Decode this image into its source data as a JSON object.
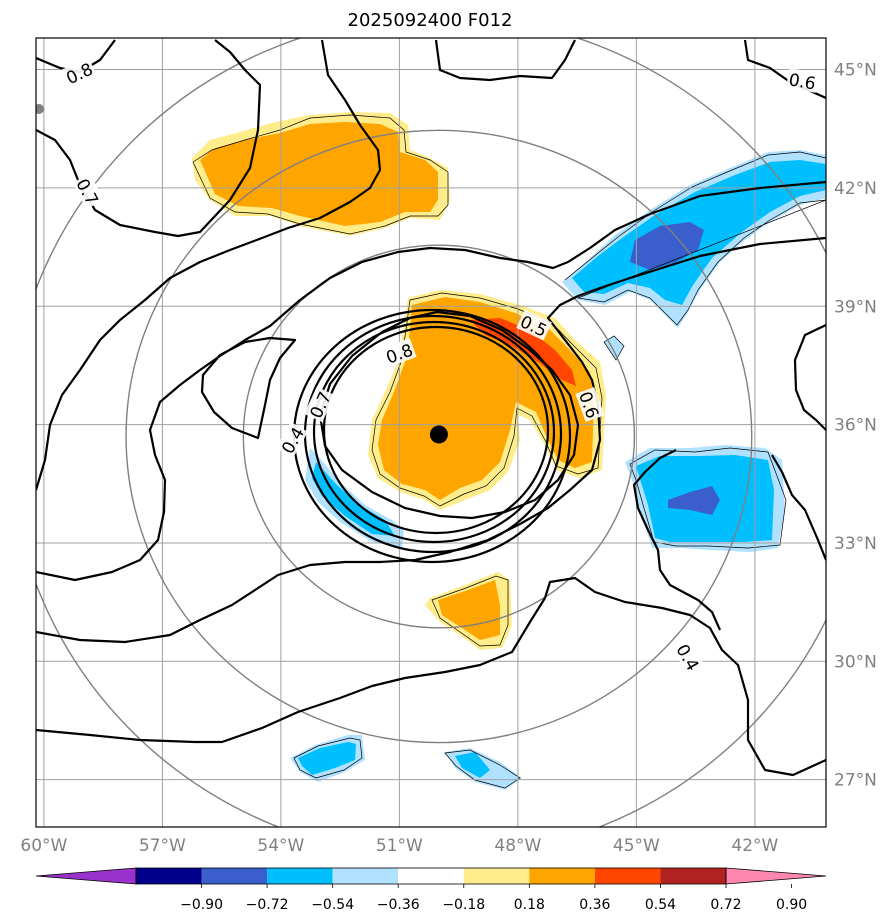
{
  "chart_data": {
    "type": "contour",
    "title": "2025092400 F012",
    "lon_range": [
      -60.2,
      -40.2
    ],
    "lat_range": [
      25.8,
      45.8
    ],
    "lon_ticks": [
      {
        "value": -60,
        "label": "60°W"
      },
      {
        "value": -57,
        "label": "57°W"
      },
      {
        "value": -54,
        "label": "54°W"
      },
      {
        "value": -51,
        "label": "51°W"
      },
      {
        "value": -48,
        "label": "48°W"
      },
      {
        "value": -45,
        "label": "45°W"
      },
      {
        "value": -42,
        "label": "42°W"
      }
    ],
    "lat_ticks": [
      {
        "value": 27,
        "label": "27°N"
      },
      {
        "value": 30,
        "label": "30°N"
      },
      {
        "value": 33,
        "label": "33°N"
      },
      {
        "value": 36,
        "label": "36°N"
      },
      {
        "value": 39,
        "label": "39°N"
      },
      {
        "value": 42,
        "label": "42°N"
      },
      {
        "value": 45,
        "label": "45°N"
      }
    ],
    "storm_center": {
      "lon": -50.0,
      "lat": 35.75
    },
    "range_rings_deg": [
      5,
      8,
      11
    ],
    "colorbar": {
      "levels": [
        "−0.90",
        "−0.72",
        "−0.54",
        "−0.36",
        "−0.18",
        "0.18",
        "0.36",
        "0.54",
        "0.72",
        "0.90"
      ],
      "colors": [
        "#9932cc",
        "#00008b",
        "#3a5fcd",
        "#00bfff",
        "#b0e2ff",
        "#ffffff",
        "#ffec8b",
        "#ffa500",
        "#ff4500",
        "#b22222",
        "#ff88b0"
      ],
      "extend": "both"
    },
    "contour_labels": [
      {
        "text": "0.8",
        "lon": -59.1,
        "lat": 44.9,
        "angle": -25
      },
      {
        "text": "0.7",
        "lon": -58.9,
        "lat": 41.9,
        "angle": 62
      },
      {
        "text": "0.6",
        "lon": -40.8,
        "lat": 44.7,
        "angle": 10
      },
      {
        "text": "0.4",
        "lon": -53.7,
        "lat": 35.6,
        "angle": -60
      },
      {
        "text": "0.8",
        "lon": -51.0,
        "lat": 37.8,
        "angle": -20
      },
      {
        "text": "0.7",
        "lon": -53.0,
        "lat": 36.5,
        "angle": -65
      },
      {
        "text": "0.5",
        "lon": -47.6,
        "lat": 38.5,
        "angle": 25
      },
      {
        "text": "0.6",
        "lon": -46.2,
        "lat": 36.5,
        "angle": 70
      },
      {
        "text": "0.4",
        "lon": -43.7,
        "lat": 30.1,
        "angle": 60
      }
    ],
    "colors": {
      "grid": "#a0a0a0",
      "ring": "#808080",
      "contour": "#000000"
    }
  }
}
